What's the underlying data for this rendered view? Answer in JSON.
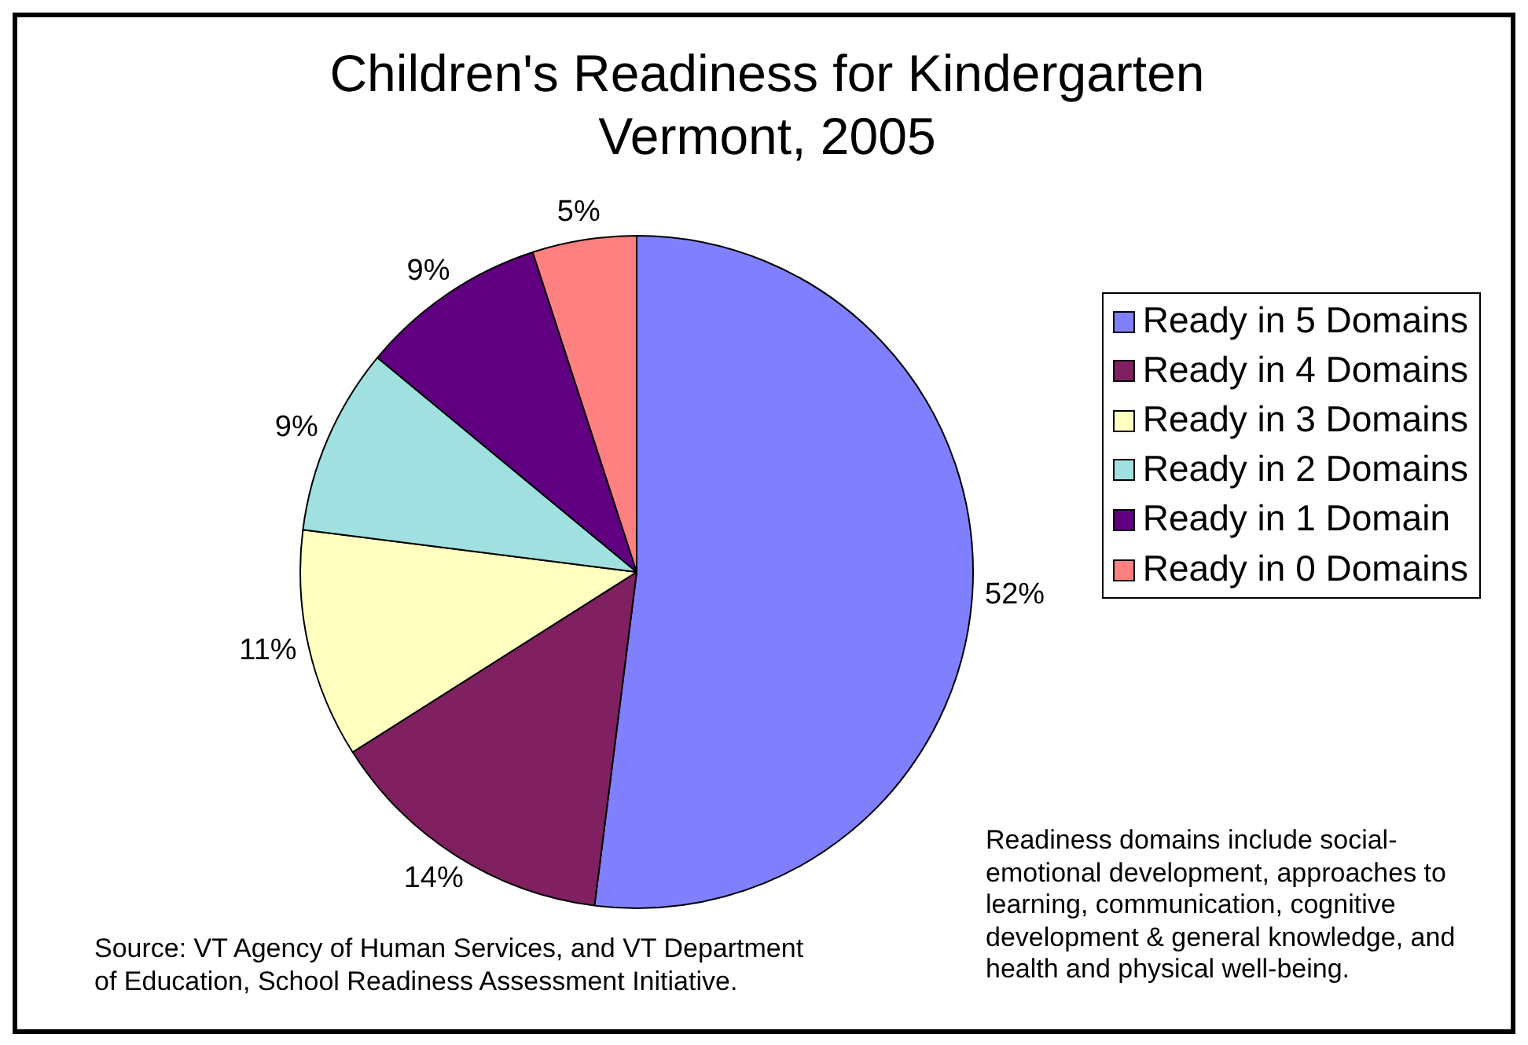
{
  "chart_data": {
    "type": "pie",
    "title": "Children's Readiness for Kindergarten",
    "subtitle": "Vermont, 2005",
    "categories": [
      "Ready in 5 Domains",
      "Ready in 4 Domains",
      "Ready in 3 Domains",
      "Ready in 2 Domains",
      "Ready in 1 Domain",
      "Ready in 0 Domains"
    ],
    "values": [
      52,
      14,
      11,
      9,
      9,
      5
    ],
    "colors": [
      "#8080ff",
      "#802060",
      "#ffffc0",
      "#a0e0e0",
      "#600080",
      "#ff8080"
    ],
    "value_labels": [
      "52%",
      "14%",
      "11%",
      "9%",
      "9%",
      "5%"
    ],
    "legend": "right",
    "annotations": [
      "Source: VT Agency of Human Services, and VT Department of Education, School Readiness Assessment Initiative.",
      "Readiness domains include social-emotional development, approaches to learning, communication, cognitive development & general knowledge, and health and physical well-being."
    ]
  }
}
